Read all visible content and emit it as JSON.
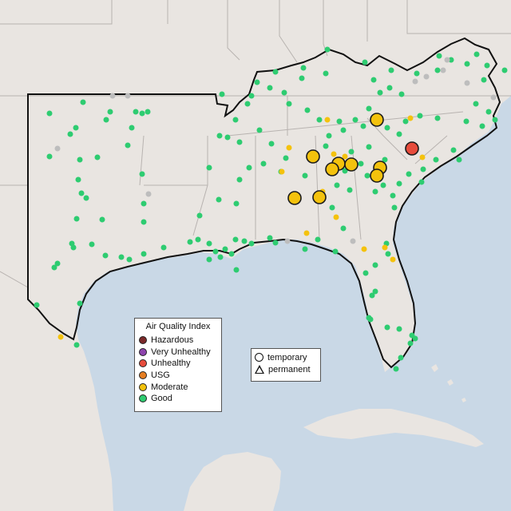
{
  "map": {
    "colors": {
      "water": "#c9d8e6",
      "land": "#e9e5e1",
      "state_border": "#b8b3b0",
      "region_border": "#111111",
      "good": "#2ecc71",
      "moderate": "#f4c20d",
      "unhealthy": "#e74c3c",
      "no_data": "#bdbdbd",
      "marker_outline": "#1a1a1a"
    }
  },
  "legend": {
    "title": "Air Quality Index",
    "items": [
      {
        "label": "Hazardous",
        "color": "#7b2a2a"
      },
      {
        "label": "Very Unhealthy",
        "color": "#8e44ad"
      },
      {
        "label": "Unhealthy",
        "color": "#e74c3c"
      },
      {
        "label": "USG",
        "color": "#e67e22"
      },
      {
        "label": "Moderate",
        "color": "#f4c20d"
      },
      {
        "label": "Good",
        "color": "#2ecc71"
      }
    ]
  },
  "shape_legend": {
    "temporary": "temporary",
    "permanent": "permanent"
  }
}
